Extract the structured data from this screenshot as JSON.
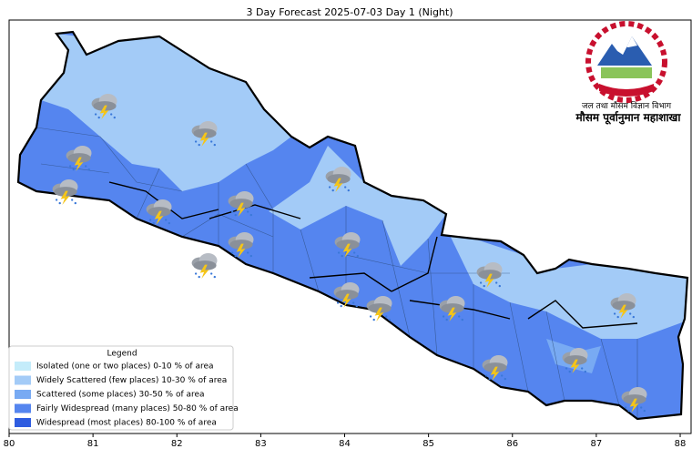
{
  "title": "3 Day Forecast 2025-07-03 Day 1 (Night)",
  "xlim": [
    80,
    88.13
  ],
  "xticks": [
    80,
    81,
    82,
    83,
    84,
    85,
    86,
    87,
    88
  ],
  "legend": {
    "title": "Legend",
    "items": [
      {
        "label": "Isolated (one or two places)  0-10 % of area",
        "color": "#c4ecfa"
      },
      {
        "label": "Widely Scattered (few places) 10-30 % of area",
        "color": "#a3cbf7"
      },
      {
        "label": "Scattered (some places) 30-50  % of area",
        "color": "#78aaf3"
      },
      {
        "label": "Fairly Widespread (many places) 50-80 % of area",
        "color": "#5585ef"
      },
      {
        "label": "Widespread (most places) 80-100 % of area",
        "color": "#2e5ce0"
      }
    ]
  },
  "logo": {
    "line1": "जल तथा मौसम विज्ञान विभाग",
    "line2": "मौसम पूर्वानुमान महाशाखा"
  }
}
